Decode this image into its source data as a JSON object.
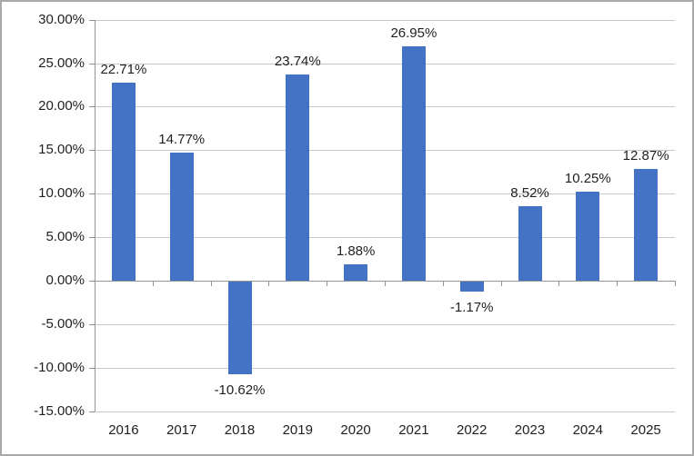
{
  "chart_data": {
    "type": "bar",
    "title": "",
    "xlabel": "",
    "ylabel": "",
    "categories": [
      "2016",
      "2017",
      "2018",
      "2019",
      "2020",
      "2021",
      "2022",
      "2023",
      "2024",
      "2025"
    ],
    "values": [
      22.71,
      14.77,
      -10.62,
      23.74,
      1.88,
      26.95,
      -1.17,
      8.52,
      10.25,
      12.87
    ],
    "data_labels": [
      "22.71%",
      "14.77%",
      "-10.62%",
      "23.74%",
      "1.88%",
      "26.95%",
      "-1.17%",
      "8.52%",
      "10.25%",
      "12.87%"
    ],
    "ylim": [
      -15,
      30
    ],
    "y_tick_step": 5,
    "y_tick_labels": [
      "30.00%",
      "25.00%",
      "20.00%",
      "15.00%",
      "10.00%",
      "5.00%",
      "0.00%",
      "-5.00%",
      "-10.00%",
      "-15.00%"
    ],
    "grid": true,
    "legend": "none",
    "colors": {
      "bar": "#4472C4",
      "gridline": "#C9C9C9",
      "axis": "#949494",
      "text": "#1F1F1F",
      "background": "#FFFFFF",
      "chart_border": "#A9A9A9"
    }
  }
}
